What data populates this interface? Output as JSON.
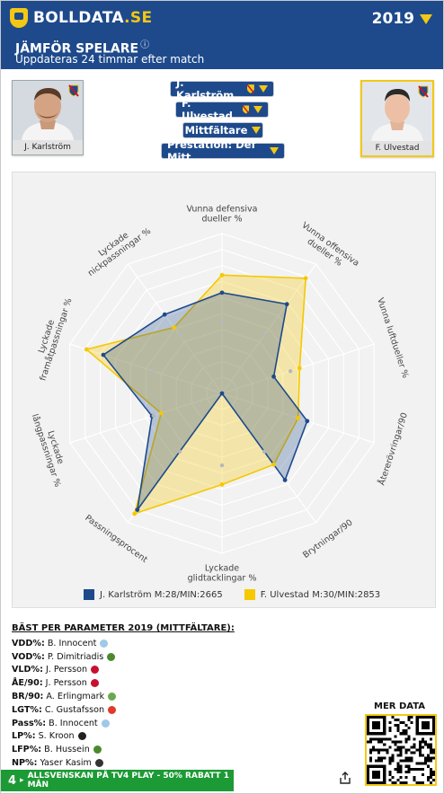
{
  "brand": {
    "name": "BOLLDATA",
    "tld": ".SE"
  },
  "season": "2019",
  "page": {
    "title": "JÄMFÖR SPELARE",
    "info": "ⓘ",
    "subtitle": "Uppdateras 24 timmar efter match"
  },
  "players": [
    {
      "name": "J. Karlström"
    },
    {
      "name": "F. Ulvestad"
    }
  ],
  "selectors": {
    "player1": "J. Karlström",
    "player2": "F. Ulvestad",
    "position": "Mittfältare",
    "preset": "Prestation: Def Mitt"
  },
  "colors": {
    "primary": "#1e4a8c",
    "player1": "#1e4a8c",
    "player2": "#f5c800",
    "promo": "#1c9a35"
  },
  "chart_data": {
    "type": "radar",
    "axes": [
      [
        "Vunna defensiva",
        "dueller %"
      ],
      [
        "Vunna offensiva",
        "dueller %"
      ],
      [
        "Vunna luftdueller %"
      ],
      [
        "Återerövringar/90"
      ],
      [
        "Brytningar/90"
      ],
      [
        "Lyckade",
        "glidtacklingar %"
      ],
      [
        "Passningsprocent"
      ],
      [
        "Lyckade",
        "långpassningar %"
      ],
      [
        "Lyckade",
        "framåtpassningar %"
      ],
      [
        "Lyckade",
        "nickpassningar %"
      ]
    ],
    "range": [
      0,
      1
    ],
    "series": [
      {
        "name": "J. Karlström",
        "values": [
          0.63,
          0.69,
          0.34,
          0.56,
          0.67,
          0.0,
          0.9,
          0.46,
          0.78,
          0.61
        ]
      },
      {
        "name": "F. Ulvestad",
        "values": [
          0.74,
          0.89,
          0.51,
          0.5,
          0.55,
          0.57,
          0.93,
          0.4,
          0.89,
          0.51
        ]
      }
    ],
    "legend": [
      {
        "label": "J. Karlström M:28/MIN:2665"
      },
      {
        "label": "F. Ulvestad M:30/MIN:2853"
      }
    ]
  },
  "best": {
    "title": "BÄST PER PARAMETER 2019 (MITTFÄLTARE):",
    "rows": [
      {
        "key": "VDD%:",
        "name": "B. Innocent",
        "color": "#9ec9e8"
      },
      {
        "key": "VOD%:",
        "name": "P. Dimitriadis",
        "color": "#4a8a2a"
      },
      {
        "key": "VLD%:",
        "name": "J. Persson",
        "color": "#c8102e"
      },
      {
        "key": "ÅE/90:",
        "name": "J. Persson",
        "color": "#c8102e"
      },
      {
        "key": "BR/90:",
        "name": "A. Erlingmark",
        "color": "#6aa84f"
      },
      {
        "key": "LGT%:",
        "name": "C. Gustafsson",
        "color": "#e03a2a"
      },
      {
        "key": "Pass%:",
        "name": "B. Innocent",
        "color": "#9ec9e8"
      },
      {
        "key": "LP%:",
        "name": "S. Kroon",
        "color": "#222222"
      },
      {
        "key": "LFP%:",
        "name": "B. Hussein",
        "color": "#4a8a2a"
      },
      {
        "key": "NP%:",
        "name": "Yaser Kasim",
        "color": "#333333"
      }
    ]
  },
  "more_data": "MER DATA",
  "promo": {
    "number": "4",
    "text": "ALLSVENSKAN PÅ TV4 PLAY - 50% RABATT 1 MÅN"
  },
  "icons": {
    "share": "share-icon",
    "qr": "qr-code-icon"
  }
}
